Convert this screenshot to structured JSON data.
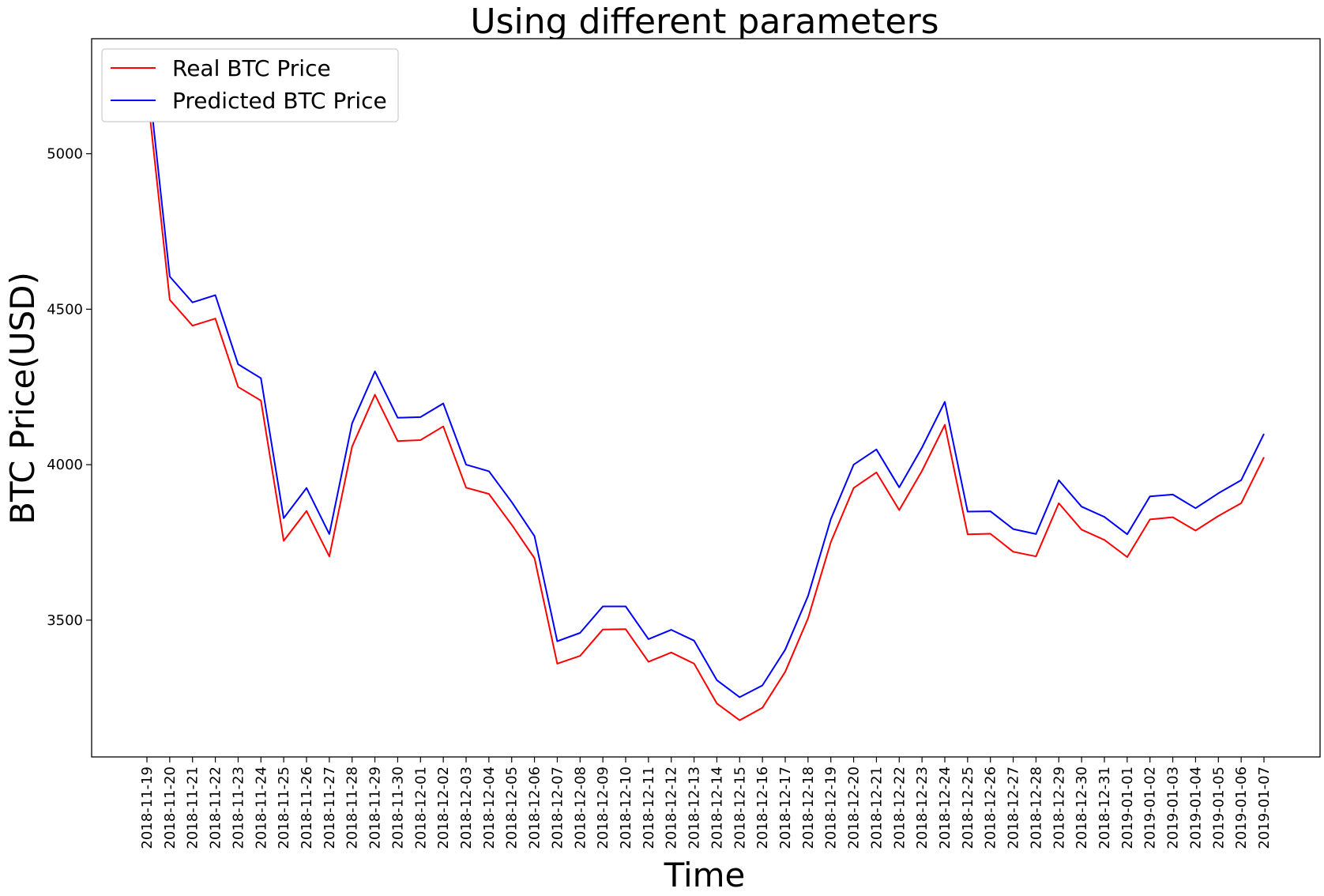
{
  "chart_data": {
    "type": "line",
    "title": "Using different parameters",
    "xlabel": "Time",
    "ylabel": "BTC Price(USD)",
    "x": [
      "2018-11-19",
      "2018-11-20",
      "2018-11-21",
      "2018-11-22",
      "2018-11-23",
      "2018-11-24",
      "2018-11-25",
      "2018-11-26",
      "2018-11-27",
      "2018-11-28",
      "2018-11-29",
      "2018-11-30",
      "2018-12-01",
      "2018-12-02",
      "2018-12-03",
      "2018-12-04",
      "2018-12-05",
      "2018-12-06",
      "2018-12-07",
      "2018-12-08",
      "2018-12-09",
      "2018-12-10",
      "2018-12-11",
      "2018-12-12",
      "2018-12-13",
      "2018-12-14",
      "2018-12-15",
      "2018-12-16",
      "2018-12-17",
      "2018-12-18",
      "2018-12-19",
      "2018-12-20",
      "2018-12-21",
      "2018-12-22",
      "2018-12-23",
      "2018-12-24",
      "2018-12-25",
      "2018-12-26",
      "2018-12-27",
      "2018-12-28",
      "2018-12-29",
      "2018-12-30",
      "2018-12-31",
      "2019-01-01",
      "2019-01-02",
      "2019-01-03",
      "2019-01-04",
      "2019-01-05",
      "2019-01-06",
      "2019-01-07"
    ],
    "yticks": [
      3500,
      4000,
      4500,
      5000
    ],
    "ylim": [
      3060,
      5370
    ],
    "grid": false,
    "legend_position": "top-left",
    "series": [
      {
        "name": "Real BTC Price",
        "color": "#ff0000",
        "values": [
          5210,
          4530,
          4447,
          4470,
          4250,
          4206,
          3755,
          3851,
          3705,
          4058,
          4225,
          4076,
          4079,
          4123,
          3926,
          3906,
          3807,
          3699,
          3360,
          3385,
          3470,
          3471,
          3366,
          3396,
          3360,
          3232,
          3178,
          3218,
          3334,
          3506,
          3751,
          3925,
          3975,
          3854,
          3980,
          4128,
          3776,
          3778,
          3720,
          3705,
          3876,
          3791,
          3758,
          3703,
          3824,
          3831,
          3788,
          3835,
          3876,
          4024
        ]
      },
      {
        "name": "Predicted BTC Price",
        "color": "#0000ff",
        "values": [
          5285,
          4605,
          4522,
          4545,
          4323,
          4278,
          3828,
          3925,
          3777,
          4133,
          4300,
          4151,
          4153,
          4197,
          4000,
          3979,
          3880,
          3770,
          3432,
          3459,
          3544,
          3544,
          3439,
          3469,
          3434,
          3307,
          3252,
          3290,
          3405,
          3578,
          3825,
          4000,
          4049,
          3927,
          4055,
          4202,
          3849,
          3850,
          3793,
          3777,
          3950,
          3865,
          3832,
          3776,
          3898,
          3904,
          3860,
          3908,
          3950,
          4099
        ]
      }
    ]
  }
}
